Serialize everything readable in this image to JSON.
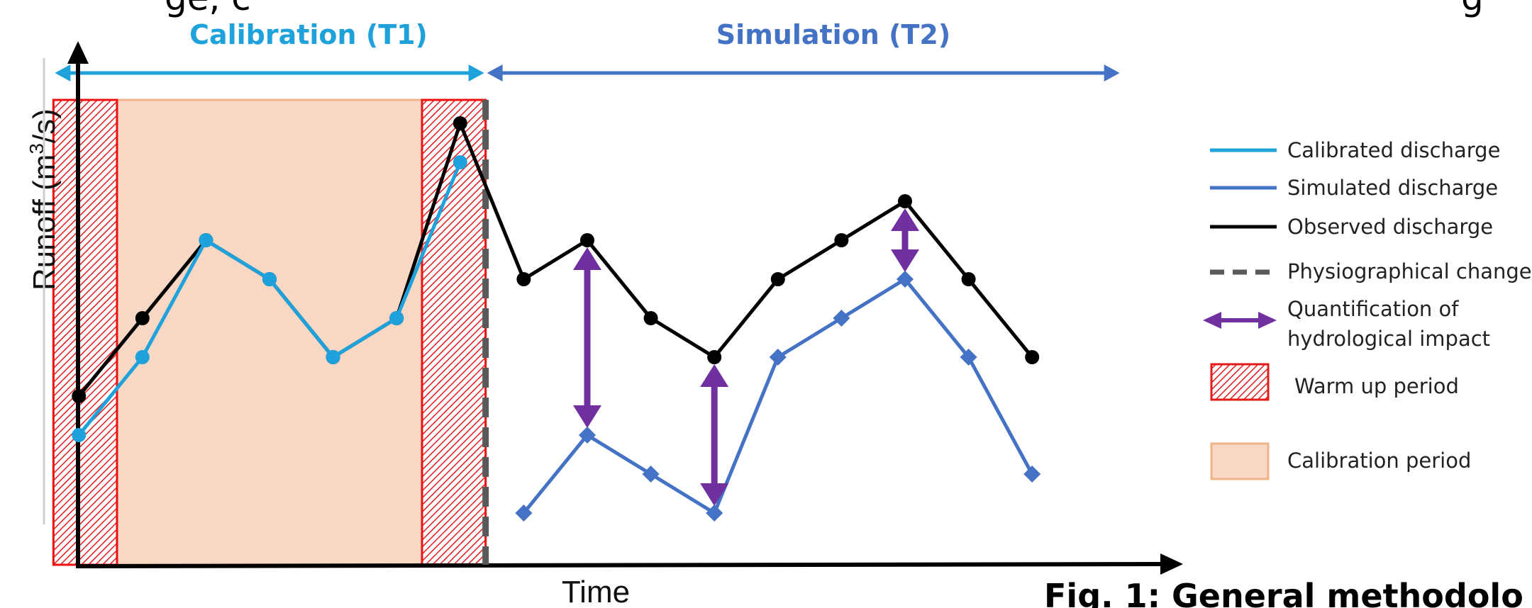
{
  "top_text": {
    "left": "ge, c",
    "right": "g"
  },
  "headers": {
    "calibration": "Calibration (T1)",
    "simulation": "Simulation (T2)"
  },
  "axes": {
    "y_label_prefix": "Runoff (m",
    "y_label_sup": "3",
    "y_label_suffix": "/s)",
    "x_label": "Time"
  },
  "legend": {
    "calibrated": "Calibrated discharge",
    "simulated": "Simulated discharge",
    "observed": "Observed discharge",
    "physio": "Physiographical change",
    "quant_line1": "Quantification of",
    "quant_line2": "hydrological impact",
    "warmup": "Warm up period",
    "calibration_period": "Calibration period"
  },
  "caption": "Fig. 1: General methodolo",
  "colors": {
    "calibrated": "#1fa2dc",
    "simulated": "#4472c4",
    "observed": "#000000",
    "physio": "#595959",
    "quantification": "#7030a0",
    "warmup_edge": "#ee1111",
    "calibration_fill": "#f8d8c4",
    "calibration_edge": "#f0b48a"
  },
  "chart_data": {
    "type": "line",
    "x": [
      1,
      2,
      3,
      4,
      5,
      6,
      7,
      8,
      9,
      10,
      11,
      12,
      13,
      14,
      15,
      16
    ],
    "series": [
      {
        "name": "Observed discharge",
        "x": [
          1,
          2,
          3,
          4,
          5,
          6,
          7,
          8,
          9,
          10,
          11,
          12,
          13,
          14,
          15,
          16
        ],
        "values": [
          4.2,
          6.2,
          8.2,
          7.2,
          5.2,
          6.2,
          11.2,
          7.2,
          8.2,
          6.2,
          5.2,
          7.2,
          8.2,
          9.2,
          7.2,
          5.2
        ]
      },
      {
        "name": "Calibrated discharge",
        "x": [
          1,
          2,
          3,
          4,
          5,
          6,
          7
        ],
        "values": [
          3.2,
          5.2,
          8.2,
          7.2,
          5.2,
          6.2,
          10.2
        ]
      },
      {
        "name": "Simulated discharge",
        "x": [
          8,
          9,
          10,
          11,
          12,
          13,
          14,
          15,
          16
        ],
        "values": [
          1.2,
          3.2,
          2.2,
          1.2,
          5.2,
          6.2,
          7.2,
          5.2,
          2.2
        ]
      }
    ],
    "impact_arrows_at_x": [
      9,
      11,
      14
    ],
    "periods": {
      "warm_up": [
        [
          0.6,
          1.6
        ],
        [
          6.4,
          7.4
        ]
      ],
      "calibration": [
        0.6,
        7.4
      ],
      "calibration_label_range": [
        0.6,
        7.4
      ],
      "simulation_label_range": [
        7.4,
        17.4
      ],
      "physiographical_change_x": 7.4
    },
    "xlim": [
      0.6,
      17.6
    ],
    "ylim": [
      0,
      12
    ],
    "grid": false,
    "legend_position": "right"
  }
}
